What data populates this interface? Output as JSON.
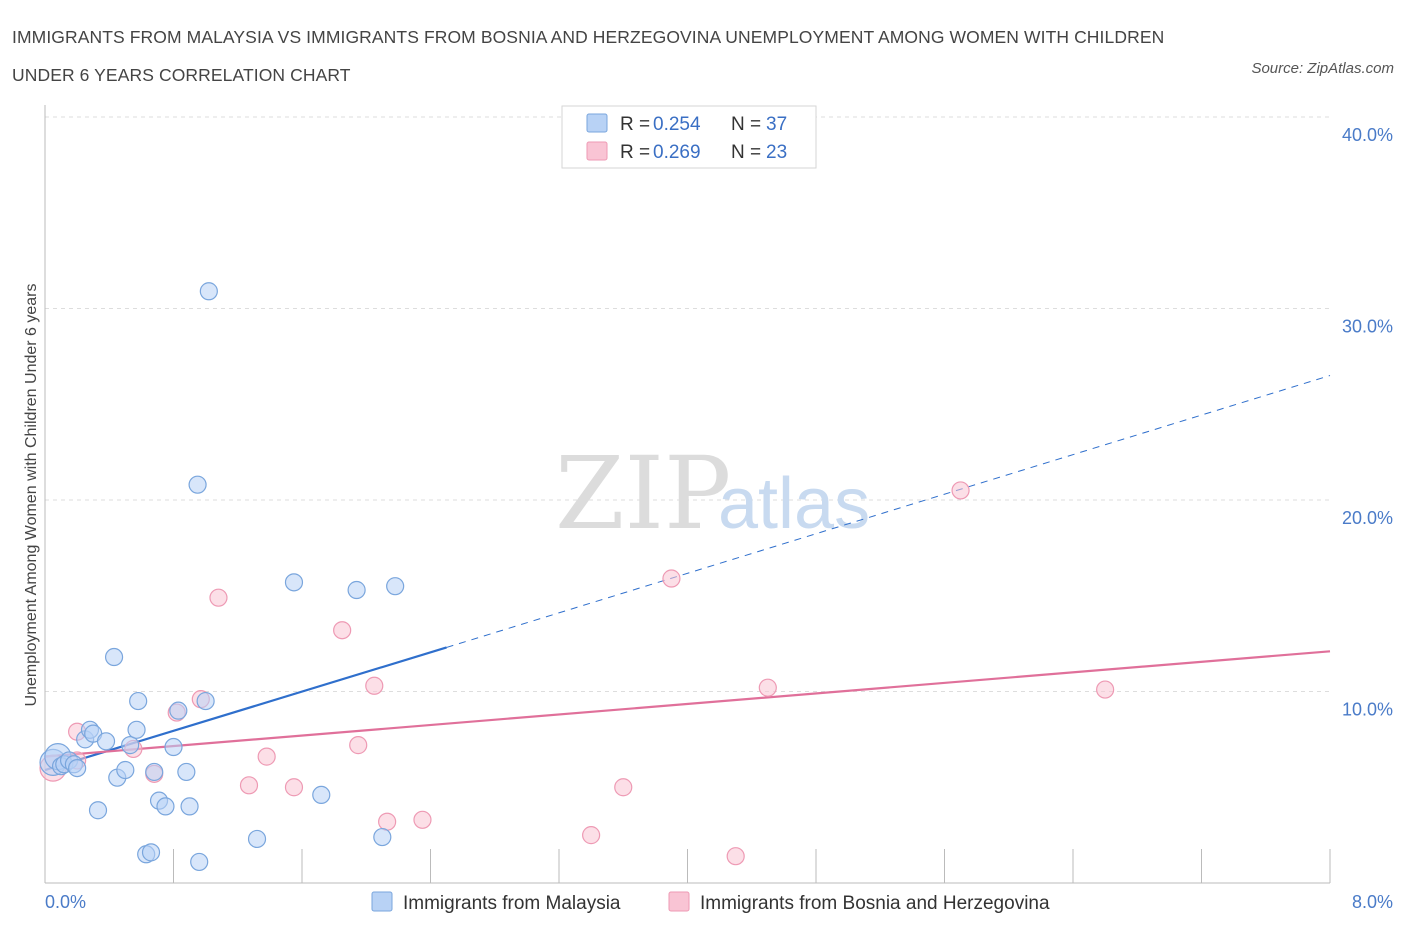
{
  "title": "IMMIGRANTS FROM MALAYSIA VS IMMIGRANTS FROM BOSNIA AND HERZEGOVINA UNEMPLOYMENT AMONG WOMEN WITH CHILDREN UNDER 6 YEARS CORRELATION CHART",
  "source": "Source: ZipAtlas.com",
  "watermark": {
    "zip": "ZIP",
    "atlas": "atlas"
  },
  "legend": {
    "rows": [
      {
        "r_label": "R =",
        "r_value": "0.254",
        "n_label": "N =",
        "n_value": "37"
      },
      {
        "r_label": "R =",
        "r_value": "0.269",
        "n_label": "N =",
        "n_value": "23"
      }
    ]
  },
  "bottom_legend": [
    "Immigrants from Malaysia",
    "Immigrants from Bosnia and Herzegovina"
  ],
  "colors": {
    "malaysia_fill": "#b8d2f5",
    "malaysia_stroke": "#7aa6dd",
    "malaysia_line": "#2f6fcc",
    "bosnia_fill": "#f9c4d4",
    "bosnia_stroke": "#ee9ab4",
    "bosnia_line": "#e0709a",
    "grid": "#dddddd",
    "tick_text": "#4a7bc8"
  },
  "chart_data": {
    "type": "scatter",
    "ylabel": "Unemployment Among Women with Children Under 6 years",
    "xlabel": "",
    "xlim": [
      0,
      8
    ],
    "ylim": [
      0,
      40
    ],
    "x_tick_labels": [
      "0.0%",
      "8.0%"
    ],
    "y_ticks": [
      10,
      20,
      30,
      40
    ],
    "y_tick_labels": [
      "10.0%",
      "20.0%",
      "30.0%",
      "40.0%"
    ],
    "grid": true,
    "series": [
      {
        "name": "Immigrants from Malaysia",
        "points": [
          [
            0.05,
            6.3
          ],
          [
            0.08,
            6.6
          ],
          [
            0.1,
            6.1
          ],
          [
            0.12,
            6.2
          ],
          [
            0.15,
            6.4
          ],
          [
            0.18,
            6.2
          ],
          [
            0.2,
            6.0
          ],
          [
            0.25,
            7.5
          ],
          [
            0.28,
            8.0
          ],
          [
            0.3,
            7.8
          ],
          [
            0.33,
            3.8
          ],
          [
            0.38,
            7.4
          ],
          [
            0.43,
            11.8
          ],
          [
            0.45,
            5.5
          ],
          [
            0.5,
            5.9
          ],
          [
            0.53,
            7.2
          ],
          [
            0.57,
            8.0
          ],
          [
            0.58,
            9.5
          ],
          [
            0.63,
            1.5
          ],
          [
            0.66,
            1.6
          ],
          [
            0.68,
            5.8
          ],
          [
            0.71,
            4.3
          ],
          [
            0.75,
            4.0
          ],
          [
            0.8,
            7.1
          ],
          [
            0.83,
            9.0
          ],
          [
            0.88,
            5.8
          ],
          [
            0.9,
            4.0
          ],
          [
            0.95,
            20.8
          ],
          [
            0.96,
            1.1
          ],
          [
            1.0,
            9.5
          ],
          [
            1.02,
            30.9
          ],
          [
            1.32,
            2.3
          ],
          [
            1.55,
            15.7
          ],
          [
            1.72,
            4.6
          ],
          [
            1.94,
            15.3
          ],
          [
            2.1,
            2.4
          ],
          [
            2.18,
            15.5
          ]
        ]
      },
      {
        "name": "Immigrants from Bosnia and Herzegovina",
        "points": [
          [
            0.05,
            6.0
          ],
          [
            0.2,
            6.4
          ],
          [
            0.2,
            7.9
          ],
          [
            0.55,
            7.0
          ],
          [
            0.68,
            5.7
          ],
          [
            0.82,
            8.9
          ],
          [
            0.97,
            9.6
          ],
          [
            1.08,
            14.9
          ],
          [
            1.27,
            5.1
          ],
          [
            1.38,
            6.6
          ],
          [
            1.55,
            5.0
          ],
          [
            1.85,
            13.2
          ],
          [
            1.95,
            7.2
          ],
          [
            2.05,
            10.3
          ],
          [
            2.13,
            3.2
          ],
          [
            2.35,
            3.3
          ],
          [
            3.4,
            2.5
          ],
          [
            3.6,
            5.0
          ],
          [
            3.9,
            15.9
          ],
          [
            4.3,
            1.4
          ],
          [
            4.5,
            10.2
          ],
          [
            5.7,
            20.5
          ],
          [
            6.6,
            10.1
          ]
        ]
      }
    ],
    "trend_lines": [
      {
        "name": "Immigrants from Malaysia",
        "solid": [
          [
            0,
            5.9
          ],
          [
            2.5,
            12.3
          ]
        ],
        "dashed": [
          [
            2.5,
            12.3
          ],
          [
            8.0,
            26.5
          ]
        ]
      },
      {
        "name": "Immigrants from Bosnia and Herzegovina",
        "solid": [
          [
            0,
            6.6
          ],
          [
            8.0,
            12.1
          ]
        ]
      }
    ]
  }
}
